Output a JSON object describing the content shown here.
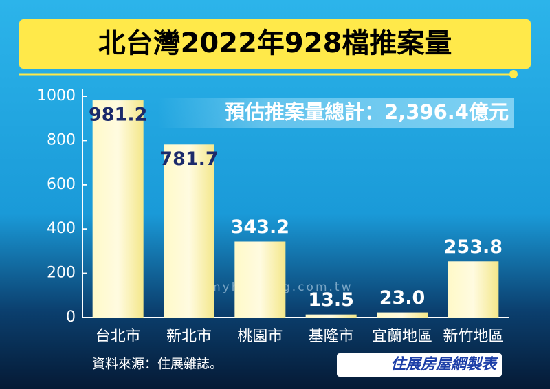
{
  "chart_data": {
    "type": "bar",
    "title": "北台灣2022年928檔推案量",
    "annotation": "預估推案量總計：2,396.4億元",
    "source": "資料來源：住展雜誌。",
    "credit": "住展房屋網製表",
    "watermark": "www.myhousing.com.tw",
    "categories": [
      "台北市",
      "新北市",
      "桃園市",
      "基隆市",
      "宜蘭地區",
      "新竹地區"
    ],
    "values": [
      981.2,
      781.7,
      343.2,
      13.5,
      23.0,
      253.8
    ],
    "value_labels": [
      "981.2",
      "781.7",
      "343.2",
      "13.5",
      "23.0",
      "253.8"
    ],
    "color": "#fff6b0",
    "ylim": [
      0,
      1000
    ],
    "yticks": [
      0,
      200,
      400,
      600,
      800,
      1000
    ],
    "grid": false
  }
}
